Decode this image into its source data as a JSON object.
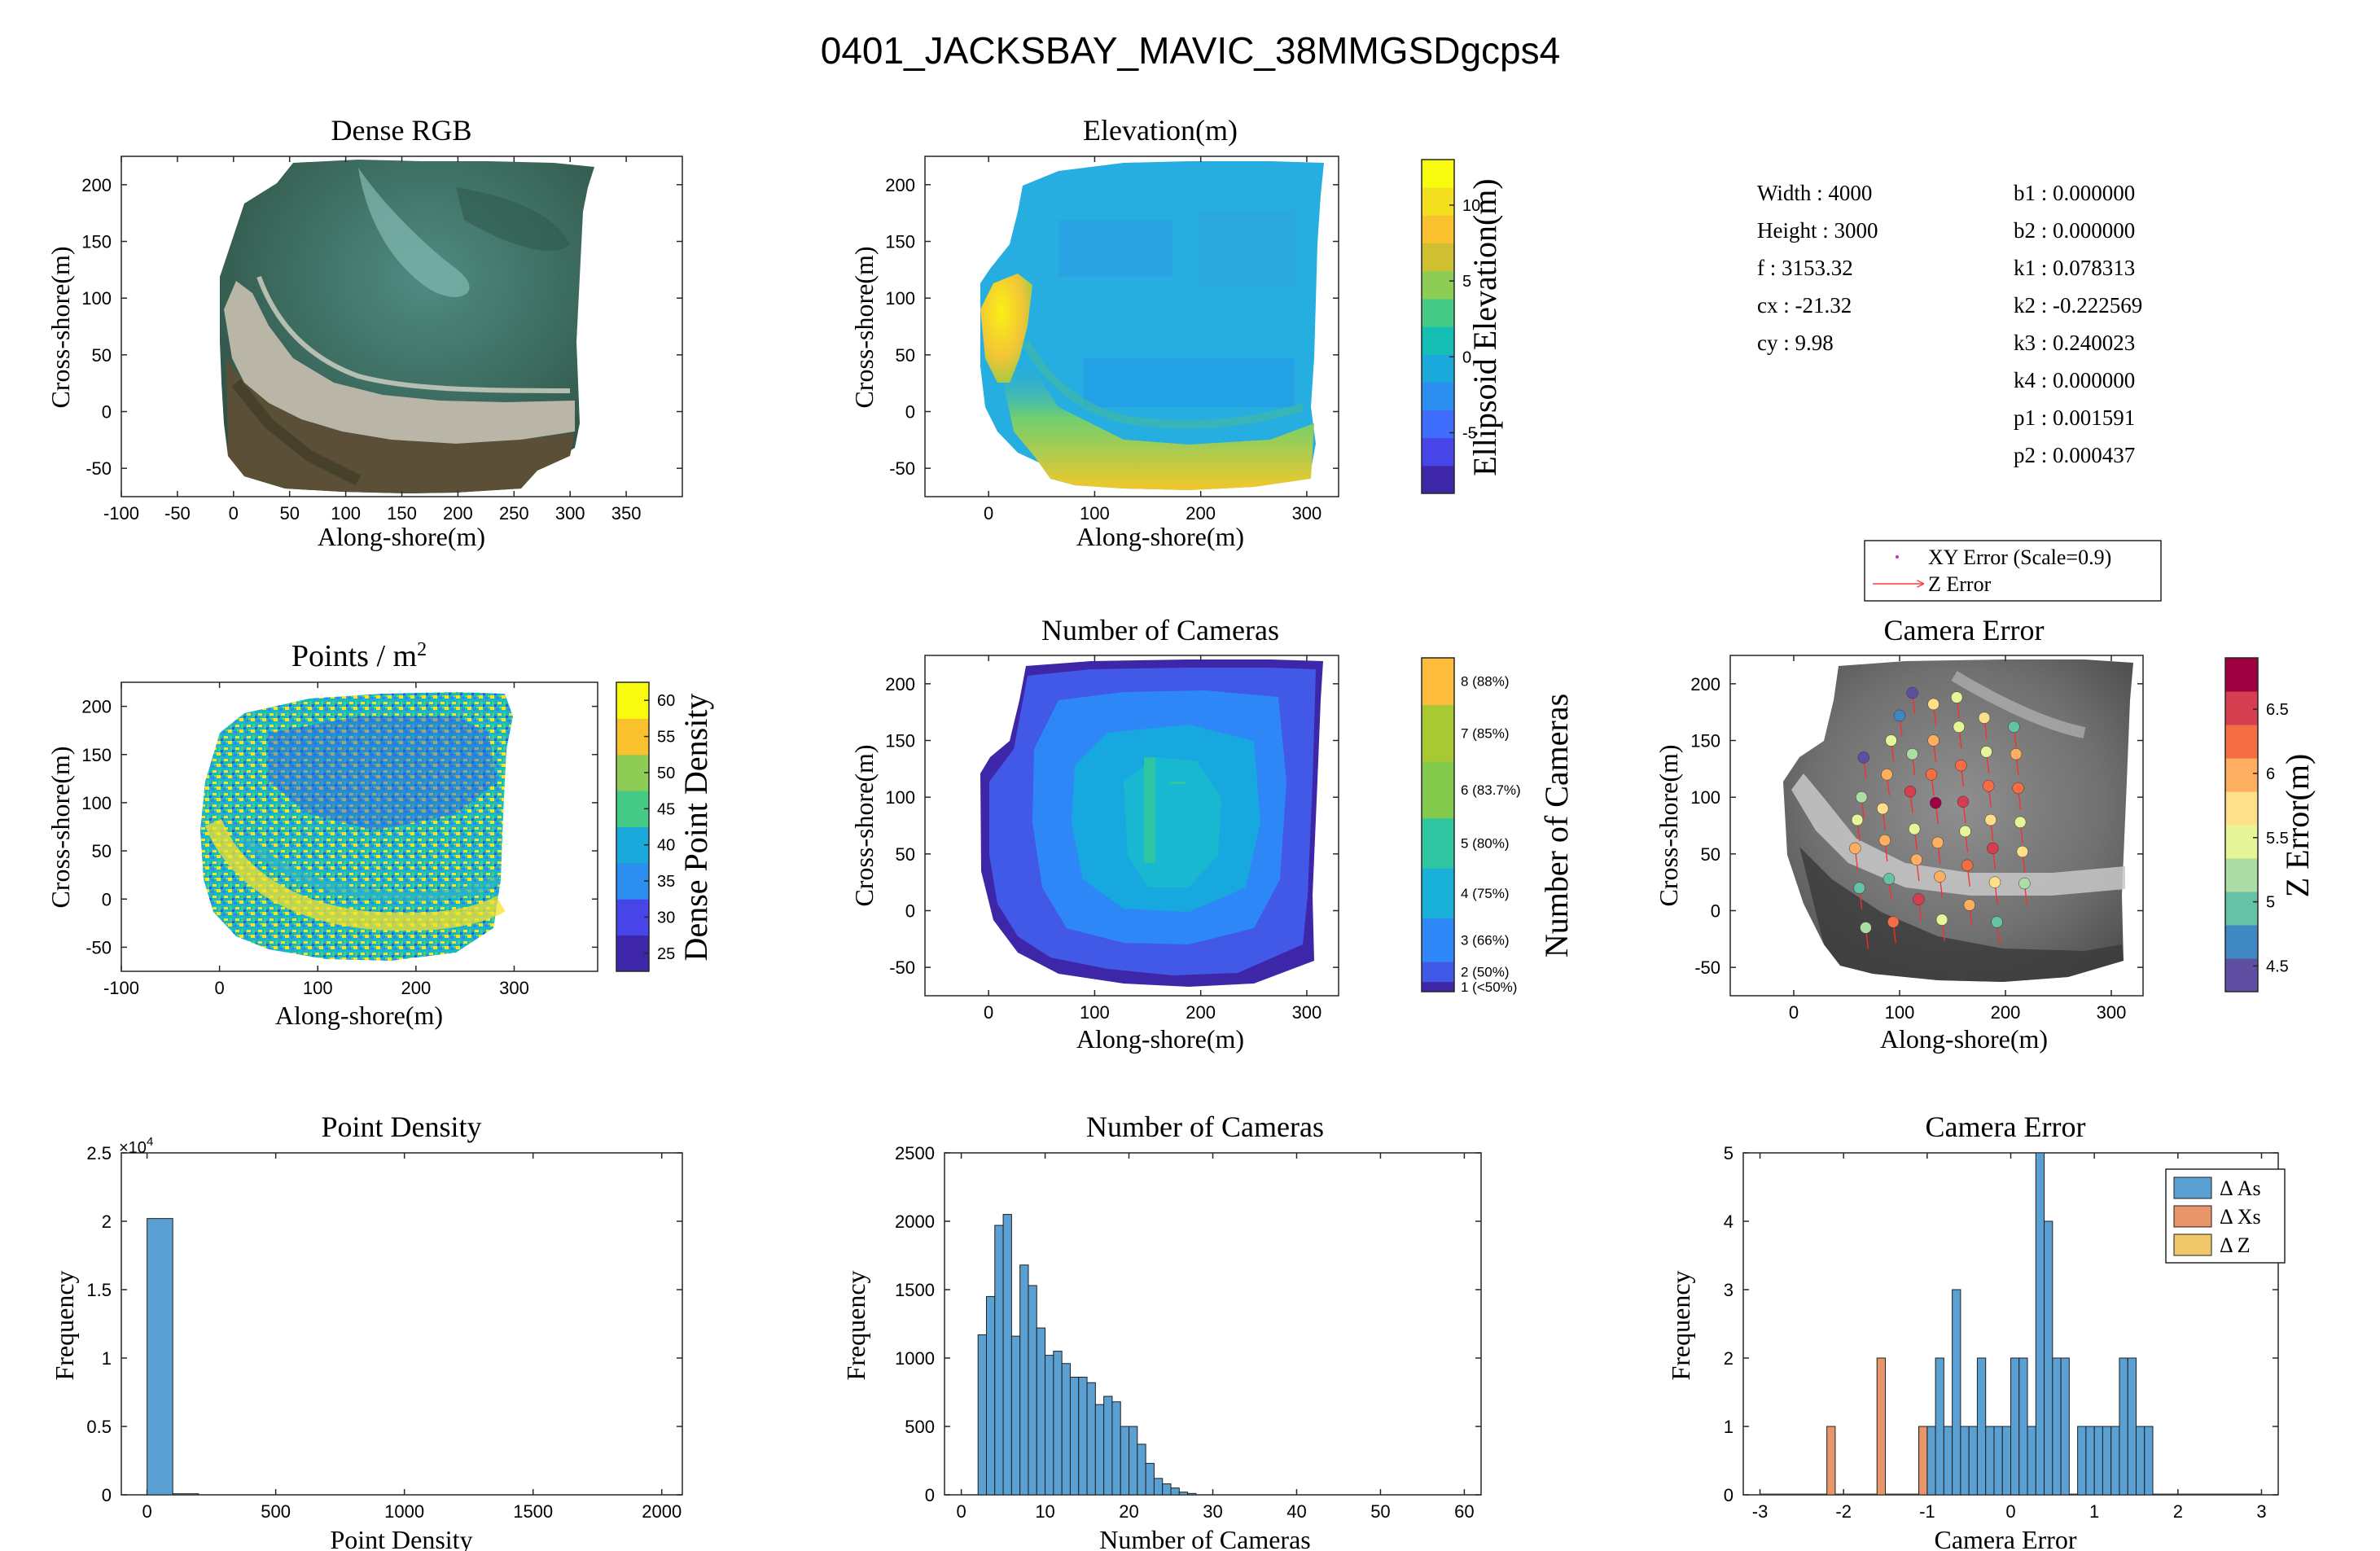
{
  "figure_title": "0401_JACKSBAY_MAVIC_38MMGSDgcps4",
  "colors": {
    "hist_blue": "#5aa0d3",
    "hist_orange": "#e8956a",
    "hist_yellow": "#f0c86a",
    "axis": "#262626",
    "map_blue": "#2d5bea",
    "map_yellow": "#f5e024",
    "parula": [
      "#3e26a8",
      "#4744e8",
      "#3f6efd",
      "#2c8ff0",
      "#1aa9db",
      "#16bfb3",
      "#45cb85",
      "#8ecd55",
      "#cfc032",
      "#fac12f",
      "#f4df1e",
      "#f9fb0e"
    ],
    "cameras_scale": [
      "#3e26a8",
      "#4259e8",
      "#2e87f7",
      "#18b0d9",
      "#2ec5a0",
      "#82c94c",
      "#a8c932",
      "#fdbc3c",
      "#f9fb0e"
    ],
    "spectral": [
      "#5e4fa2",
      "#3f88c4",
      "#66c2a5",
      "#abdda4",
      "#e6f598",
      "#fee08b",
      "#fdae61",
      "#f46d43",
      "#d53e4f",
      "#9e0142"
    ]
  },
  "params": {
    "left": [
      {
        "label": "Width",
        "value": "4000"
      },
      {
        "label": "Height",
        "value": "3000"
      },
      {
        "label": "f",
        "value": "3153.32"
      },
      {
        "label": "cx",
        "value": "-21.32"
      },
      {
        "label": "cy",
        "value": "9.98"
      }
    ],
    "right": [
      {
        "label": "b1",
        "value": "0.000000"
      },
      {
        "label": "b2",
        "value": "0.000000"
      },
      {
        "label": "k1",
        "value": "0.078313"
      },
      {
        "label": "k2",
        "value": "-0.222569"
      },
      {
        "label": "k3",
        "value": "0.240023"
      },
      {
        "label": "k4",
        "value": "0.000000"
      },
      {
        "label": "p1",
        "value": "0.001591"
      },
      {
        "label": "p2",
        "value": "0.000437"
      }
    ]
  },
  "error_legend": {
    "xy": "XY Error (Scale=0.9)",
    "z": "Z Error"
  },
  "chart_data": [
    {
      "id": "dense_rgb",
      "type": "heatmap",
      "title": "Dense RGB",
      "xlabel": "Along-shore(m)",
      "ylabel": "Cross-shore(m)",
      "xlim": [
        -100,
        400
      ],
      "ylim": [
        -75,
        225
      ],
      "xticks": [
        -100,
        -50,
        0,
        50,
        100,
        150,
        200,
        250,
        300,
        350
      ],
      "yticks": [
        -50,
        0,
        50,
        100,
        150,
        200
      ]
    },
    {
      "id": "elevation",
      "type": "heatmap",
      "title": "Elevation(m)",
      "xlabel": "Along-shore(m)",
      "ylabel": "Cross-shore(m)",
      "xlim": [
        -60,
        330
      ],
      "ylim": [
        -75,
        225
      ],
      "xticks": [
        0,
        100,
        200,
        300
      ],
      "yticks": [
        -50,
        0,
        50,
        100,
        150,
        200
      ],
      "colorbar": {
        "label": "Ellipsoid Elevation(m)",
        "range": [
          -9,
          13
        ],
        "ticks": [
          -5,
          0,
          5,
          10
        ],
        "levels": 12
      }
    },
    {
      "id": "points",
      "type": "heatmap",
      "title": "Points / m",
      "title_sup": "2",
      "xlabel": "Along-shore(m)",
      "ylabel": "Cross-shore(m)",
      "xlim": [
        -100,
        385
      ],
      "ylim": [
        -75,
        225
      ],
      "xticks": [
        -100,
        0,
        100,
        200,
        300
      ],
      "yticks": [
        -50,
        0,
        50,
        100,
        150,
        200
      ],
      "colorbar": {
        "label": "Dense Point Density",
        "range": [
          22.5,
          62.5
        ],
        "ticks": [
          25,
          30,
          35,
          40,
          45,
          50,
          55,
          60
        ],
        "levels": 8
      }
    },
    {
      "id": "cameras_map",
      "type": "heatmap",
      "title": "Number of Cameras",
      "xlabel": "Along-shore(m)",
      "ylabel": "Cross-shore(m)",
      "xlim": [
        -60,
        330
      ],
      "ylim": [
        -75,
        225
      ],
      "xticks": [
        0,
        100,
        200,
        300
      ],
      "yticks": [
        -50,
        0,
        50,
        100,
        150,
        200
      ],
      "colorbar": {
        "label": "Number of Cameras",
        "ticks": [
          "1 (<50%)",
          "2 (50%)",
          "3 (66%)",
          "4 (75%)",
          "5 (80%)",
          "6 (83.7%)",
          "7 (85%)",
          "8 (88%)"
        ]
      }
    },
    {
      "id": "camera_error_map",
      "type": "scatter",
      "title": "Camera Error",
      "xlabel": "Along-shore(m)",
      "ylabel": "Cross-shore(m)",
      "xlim": [
        -60,
        330
      ],
      "ylim": [
        -75,
        225
      ],
      "xticks": [
        0,
        100,
        200,
        300
      ],
      "yticks": [
        -50,
        0,
        50,
        100,
        150,
        200
      ],
      "colorbar": {
        "label": "Z Error(m)",
        "range": [
          4.3,
          6.9
        ],
        "ticks": [
          4.5,
          5,
          5.5,
          6,
          6.5
        ],
        "levels": 10
      },
      "points": [
        {
          "x": 60,
          "y": 80,
          "z": 5.4
        },
        {
          "x": 64,
          "y": 100,
          "z": 5.2
        },
        {
          "x": 58,
          "y": 55,
          "z": 5.9
        },
        {
          "x": 62,
          "y": 20,
          "z": 4.9
        },
        {
          "x": 66,
          "y": 135,
          "z": 4.5
        },
        {
          "x": 68,
          "y": -15,
          "z": 5.3
        },
        {
          "x": 84,
          "y": 90,
          "z": 5.7
        },
        {
          "x": 88,
          "y": 120,
          "z": 5.9
        },
        {
          "x": 86,
          "y": 62,
          "z": 6.1
        },
        {
          "x": 90,
          "y": 28,
          "z": 4.9
        },
        {
          "x": 92,
          "y": 150,
          "z": 5.6
        },
        {
          "x": 94,
          "y": -10,
          "z": 6.2
        },
        {
          "x": 100,
          "y": 172,
          "z": 4.6
        },
        {
          "x": 110,
          "y": 105,
          "z": 6.6
        },
        {
          "x": 112,
          "y": 138,
          "z": 5.2
        },
        {
          "x": 114,
          "y": 72,
          "z": 5.4
        },
        {
          "x": 116,
          "y": 45,
          "z": 6.1
        },
        {
          "x": 118,
          "y": 10,
          "z": 6.4
        },
        {
          "x": 112,
          "y": 192,
          "z": 4.5
        },
        {
          "x": 130,
          "y": 120,
          "z": 6.3
        },
        {
          "x": 134,
          "y": 95,
          "z": 6.8
        },
        {
          "x": 136,
          "y": 60,
          "z": 6.0
        },
        {
          "x": 138,
          "y": 30,
          "z": 5.9
        },
        {
          "x": 140,
          "y": -8,
          "z": 5.6
        },
        {
          "x": 132,
          "y": 150,
          "z": 6.1
        },
        {
          "x": 132,
          "y": 182,
          "z": 5.7
        },
        {
          "x": 156,
          "y": 162,
          "z": 5.4
        },
        {
          "x": 158,
          "y": 128,
          "z": 6.2
        },
        {
          "x": 160,
          "y": 96,
          "z": 6.5
        },
        {
          "x": 162,
          "y": 70,
          "z": 5.6
        },
        {
          "x": 164,
          "y": 40,
          "z": 6.3
        },
        {
          "x": 166,
          "y": 5,
          "z": 6.0
        },
        {
          "x": 154,
          "y": 188,
          "z": 5.5
        },
        {
          "x": 180,
          "y": 170,
          "z": 5.7
        },
        {
          "x": 182,
          "y": 140,
          "z": 5.6
        },
        {
          "x": 184,
          "y": 110,
          "z": 6.3
        },
        {
          "x": 186,
          "y": 80,
          "z": 5.8
        },
        {
          "x": 188,
          "y": 55,
          "z": 6.4
        },
        {
          "x": 190,
          "y": 25,
          "z": 5.8
        },
        {
          "x": 192,
          "y": -10,
          "z": 4.9
        },
        {
          "x": 210,
          "y": 138,
          "z": 6.0
        },
        {
          "x": 212,
          "y": 108,
          "z": 6.2
        },
        {
          "x": 214,
          "y": 78,
          "z": 5.4
        },
        {
          "x": 216,
          "y": 52,
          "z": 5.8
        },
        {
          "x": 218,
          "y": 24,
          "z": 5.3
        },
        {
          "x": 208,
          "y": 162,
          "z": 5.0
        }
      ]
    },
    {
      "id": "hist_point_density",
      "type": "bar",
      "title": "Point Density",
      "xlabel": "Point Density",
      "ylabel": "Frequency",
      "xlim": [
        -100,
        2080
      ],
      "ylim": [
        0,
        25000
      ],
      "xticks": [
        0,
        500,
        1000,
        1500,
        2000
      ],
      "yticks": [
        0,
        0.5,
        1,
        1.5,
        2,
        2.5
      ],
      "y_exponent": "×10",
      "y_exponent_power": "4",
      "bin_edges": [
        0,
        100,
        200
      ],
      "values": [
        20200,
        80
      ]
    },
    {
      "id": "hist_cameras",
      "type": "bar",
      "title": "Number of Cameras",
      "xlabel": "Number of Cameras",
      "ylabel": "Frequency",
      "xlim": [
        -2,
        62
      ],
      "ylim": [
        0,
        2500
      ],
      "xticks": [
        0,
        10,
        20,
        30,
        40,
        50,
        60
      ],
      "yticks": [
        0,
        500,
        1000,
        1500,
        2000,
        2500
      ],
      "bin_start": 2,
      "bin_width": 1,
      "values": [
        1170,
        1450,
        1970,
        2050,
        1160,
        1680,
        1530,
        1220,
        1020,
        1050,
        960,
        860,
        860,
        820,
        660,
        720,
        680,
        500,
        500,
        370,
        230,
        120,
        80,
        50,
        20,
        10
      ]
    },
    {
      "id": "hist_camera_error",
      "type": "bar",
      "title": "Camera Error",
      "xlabel": "Camera Error",
      "ylabel": "Frequency",
      "xlim": [
        -3.2,
        3.2
      ],
      "ylim": [
        0,
        5
      ],
      "xticks": [
        -3,
        -2,
        -1,
        0,
        1,
        2,
        3
      ],
      "yticks": [
        0,
        1,
        2,
        3,
        4,
        5
      ],
      "series": [
        {
          "name": "Δ As",
          "color": "#5aa0d3",
          "bin_width": 0.1,
          "bins": [
            [
              -1.1,
              1
            ],
            [
              -1.0,
              1
            ],
            [
              -0.9,
              2
            ],
            [
              -0.8,
              1
            ],
            [
              -0.7,
              3
            ],
            [
              -0.6,
              1
            ],
            [
              -0.5,
              1
            ],
            [
              -0.4,
              2
            ],
            [
              -0.3,
              1
            ],
            [
              -0.2,
              1
            ],
            [
              -0.1,
              1
            ],
            [
              0.0,
              2
            ],
            [
              0.1,
              2
            ],
            [
              0.2,
              1
            ],
            [
              0.3,
              5
            ],
            [
              0.4,
              4
            ],
            [
              0.5,
              2
            ],
            [
              0.6,
              2
            ],
            [
              0.8,
              1
            ],
            [
              0.9,
              1
            ],
            [
              1.0,
              1
            ],
            [
              1.1,
              1
            ],
            [
              1.2,
              1
            ],
            [
              1.3,
              2
            ],
            [
              1.4,
              2
            ],
            [
              1.5,
              1
            ],
            [
              1.6,
              1
            ]
          ]
        },
        {
          "name": "Δ Xs",
          "color": "#e8956a",
          "bin_width": 0.1,
          "bins": [
            [
              -2.2,
              1
            ],
            [
              -1.6,
              2
            ],
            [
              -1.1,
              1
            ]
          ]
        },
        {
          "name": "Δ Z",
          "color": "#f0c86a",
          "bin_width": 0.1,
          "bins": []
        }
      ]
    }
  ]
}
